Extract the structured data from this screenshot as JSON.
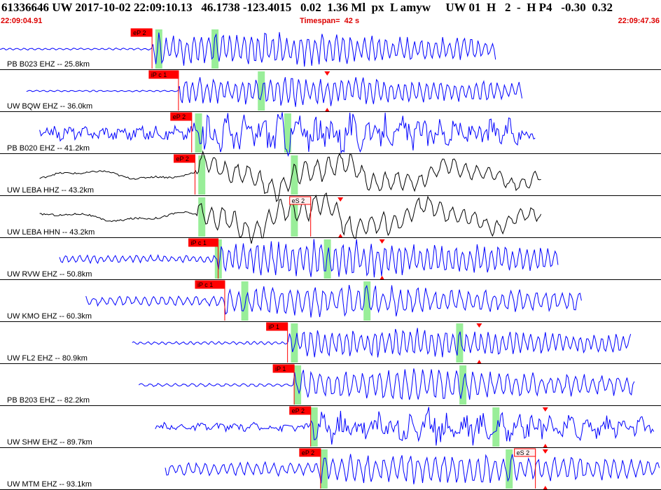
{
  "header": {
    "title": "61336646 UW 2017-10-02 22:09:10.13   46.1738 -123.4015   0.02  1.36 Ml  px  L amyw     UW 01  H   2  -  H P4   -0.30  0.32",
    "start_time": "22:09:04.91",
    "timespan": "Timespan=  42 s",
    "end_time": "22:09:47.36"
  },
  "colors": {
    "trace_blue": "#0000ff",
    "trace_black": "#000000",
    "pick_red": "#ff0000",
    "window_green": "#99ee99",
    "header_red": "#dd0000"
  },
  "traces": [
    {
      "label": "PB B023 EHZ -- 25.8km",
      "color": "blue",
      "start": 0.0,
      "end": 0.75,
      "onset": 0.23,
      "noise": 0.05,
      "amp": 0.8,
      "per": 5,
      "style": "sharp",
      "picks": [
        {
          "text": "eP 2",
          "pos": 0.23,
          "kind": "filled"
        }
      ],
      "windows": [
        0.235,
        0.32
      ],
      "triangles": []
    },
    {
      "label": "UW BQW EHZ -- 36.0km",
      "color": "blue",
      "start": 0.04,
      "end": 0.79,
      "onset": 0.27,
      "noise": 0.04,
      "amp": 0.7,
      "per": 5,
      "style": "sharp",
      "picks": [
        {
          "text": "iP c 1",
          "pos": 0.27,
          "kind": "filled"
        }
      ],
      "windows": [
        0.39
      ],
      "triangles": [
        0.495
      ]
    },
    {
      "label": "PB B020 EHZ -- 41.2km",
      "color": "blue",
      "start": 0.06,
      "end": 0.81,
      "onset": 0.29,
      "noise": 0.35,
      "amp": 0.9,
      "per": 4,
      "style": "noisy",
      "picks": [
        {
          "text": "eP 2",
          "pos": 0.29,
          "kind": "filled"
        }
      ],
      "windows": [
        0.295,
        0.43
      ],
      "triangles": []
    },
    {
      "label": "UW LEBA HHZ -- 43.2km",
      "color": "black",
      "start": 0.06,
      "end": 0.82,
      "onset": 0.295,
      "noise": 0.25,
      "amp": 0.75,
      "per": 10,
      "style": "long",
      "picks": [
        {
          "text": "eP 2",
          "pos": 0.295,
          "kind": "filled"
        }
      ],
      "windows": [
        0.3,
        0.44
      ],
      "triangles": []
    },
    {
      "label": "UW LEBA HHN -- 43.2km",
      "color": "black",
      "start": 0.06,
      "end": 0.82,
      "onset": 0.3,
      "noise": 0.25,
      "amp": 0.85,
      "per": 10,
      "style": "long",
      "picks": [
        {
          "text": "eS 2",
          "pos": 0.47,
          "kind": "outline"
        }
      ],
      "windows": [
        0.3,
        0.44
      ],
      "triangles": [
        0.515
      ]
    },
    {
      "label": "UW RVW EHZ -- 50.8km",
      "color": "blue",
      "start": 0.09,
      "end": 0.845,
      "onset": 0.33,
      "noise": 0.2,
      "amp": 0.9,
      "per": 5,
      "style": "sharp",
      "picks": [
        {
          "text": "iP c 1",
          "pos": 0.33,
          "kind": "filled"
        }
      ],
      "windows": [
        0.325,
        0.49
      ],
      "triangles": [
        0.578
      ]
    },
    {
      "label": "UW KMO EHZ -- 60.3km",
      "color": "blue",
      "start": 0.13,
      "end": 0.88,
      "onset": 0.34,
      "noise": 0.25,
      "amp": 0.75,
      "per": 6,
      "style": "sharp",
      "picks": [
        {
          "text": "iP c 1",
          "pos": 0.34,
          "kind": "filled"
        }
      ],
      "windows": [
        0.365,
        0.55
      ],
      "triangles": []
    },
    {
      "label": "UW FL2 EHZ -- 80.9km",
      "color": "blue",
      "start": 0.2,
      "end": 0.955,
      "onset": 0.435,
      "noise": 0.08,
      "amp": 0.7,
      "per": 5,
      "style": "sharp",
      "picks": [
        {
          "text": "iP 1",
          "pos": 0.435,
          "kind": "filled"
        }
      ],
      "windows": [
        0.44,
        0.69
      ],
      "triangles": [
        0.725
      ]
    },
    {
      "label": "PB B203 EHZ -- 82.2km",
      "color": "blue",
      "start": 0.21,
      "end": 0.96,
      "onset": 0.445,
      "noise": 0.08,
      "amp": 0.75,
      "per": 6,
      "style": "sharp",
      "picks": [
        {
          "text": "iP 1",
          "pos": 0.445,
          "kind": "filled"
        }
      ],
      "windows": [
        0.445,
        0.695
      ],
      "triangles": []
    },
    {
      "label": "UW SHW EHZ -- 89.7km",
      "color": "blue",
      "start": 0.235,
      "end": 0.99,
      "onset": 0.47,
      "noise": 0.2,
      "amp": 0.75,
      "per": 4,
      "style": "noisy",
      "picks": [
        {
          "text": "eP 2",
          "pos": 0.47,
          "kind": "filled"
        }
      ],
      "windows": [
        0.47,
        0.745
      ],
      "triangles": [
        0.825
      ]
    },
    {
      "label": "UW MTM EHZ -- 93.1km",
      "color": "blue",
      "start": 0.25,
      "end": 1.0,
      "onset": 0.485,
      "noise": 0.35,
      "amp": 0.75,
      "per": 6,
      "style": "sharp",
      "picks": [
        {
          "text": "eP 2",
          "pos": 0.485,
          "kind": "filled"
        },
        {
          "text": "eS 2",
          "pos": 0.81,
          "kind": "outline"
        }
      ],
      "windows": [
        0.485,
        0.765
      ],
      "triangles": [
        0.825
      ]
    }
  ]
}
